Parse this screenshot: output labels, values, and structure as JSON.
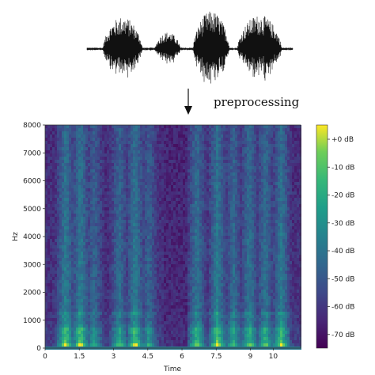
{
  "diagram": {
    "step_label": "preprocessing",
    "colors": {
      "arrow": "#111111",
      "waveform": "#111111"
    }
  },
  "chart_data": {
    "type": "heatmap",
    "title": "",
    "xlabel": "Time",
    "ylabel": "Hz",
    "xlim": [
      0,
      11.2
    ],
    "ylim": [
      0,
      8000
    ],
    "x_ticks": [
      0,
      1.5,
      3,
      4.5,
      6,
      7.5,
      9,
      10
    ],
    "x_tick_labels": [
      "0",
      "1.5",
      "3",
      "4.5",
      "6",
      "7.5",
      "9",
      "10"
    ],
    "y_ticks": [
      0,
      1000,
      2000,
      3000,
      4000,
      5000,
      6000,
      7000,
      8000
    ],
    "y_tick_labels": [
      "0",
      "1000",
      "2000",
      "3000",
      "4000",
      "5000",
      "6000",
      "7000",
      "8000"
    ],
    "colorbar": {
      "range_db": [
        -80,
        0
      ],
      "ticks": [
        0,
        -10,
        -20,
        -30,
        -40,
        -50,
        -60,
        -70
      ],
      "tick_labels": [
        "+0 dB",
        "-10 dB",
        "-20 dB",
        "-30 dB",
        "-40 dB",
        "-50 dB",
        "-60 dB",
        "-70 dB"
      ],
      "colormap": "viridis"
    },
    "grid": false,
    "legend": "none"
  }
}
